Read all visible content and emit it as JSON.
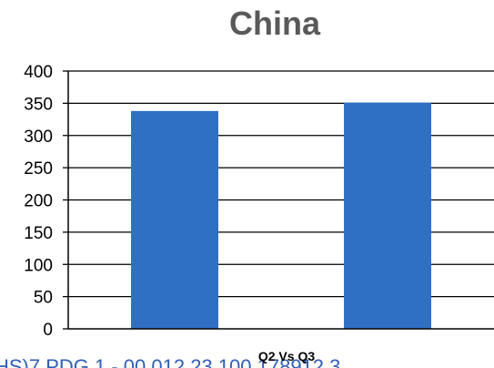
{
  "chart_data": {
    "type": "bar",
    "title": "China",
    "xlabel": "Q2 Vs Q3",
    "ylabel": "",
    "categories": [
      "",
      ""
    ],
    "values": [
      338,
      351
    ],
    "ylim": [
      0,
      400
    ],
    "yticks": [
      "0",
      "50",
      "100",
      "150",
      "200",
      "250",
      "300",
      "350",
      "400"
    ],
    "grid": true,
    "legend": "none",
    "bar_color": "#2f6fc4"
  },
  "footer_text": "HS)7 PDG 1 - 00 012 23 100 178912 3"
}
